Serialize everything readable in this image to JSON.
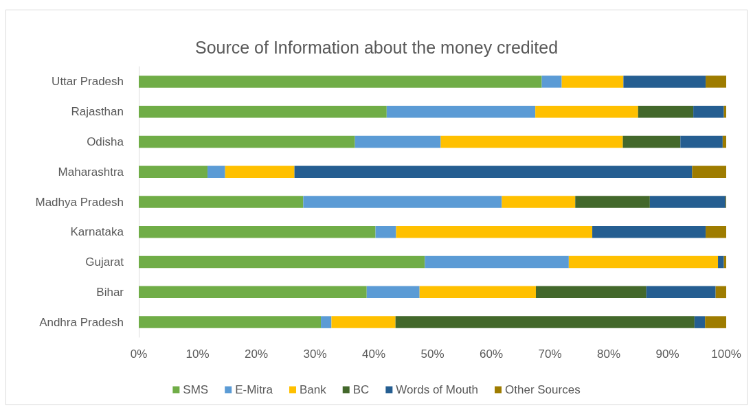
{
  "chart_data": {
    "type": "bar",
    "title": "Source of Information about the money credited",
    "orientation": "horizontal",
    "stacked": true,
    "grid": false,
    "legend": "bottom",
    "categories": [
      "Uttar Pradesh",
      "Rajasthan",
      "Odisha",
      "Maharashtra",
      "Madhya Pradesh",
      "Karnataka",
      "Gujarat",
      "Bihar",
      "Andhra Pradesh"
    ],
    "xlim": [
      0,
      100
    ],
    "xticks": [
      {
        "value": 0,
        "label": "0%"
      },
      {
        "value": 10,
        "label": "10%"
      },
      {
        "value": 20,
        "label": "20%"
      },
      {
        "value": 30,
        "label": "30%"
      },
      {
        "value": 40,
        "label": "40%"
      },
      {
        "value": 50,
        "label": "50%"
      },
      {
        "value": 60,
        "label": "60%"
      },
      {
        "value": 70,
        "label": "70%"
      },
      {
        "value": 80,
        "label": "80%"
      },
      {
        "value": 90,
        "label": "90%"
      },
      {
        "value": 100,
        "label": "100%"
      }
    ],
    "series": [
      {
        "name": "SMS",
        "color": "#70ad47",
        "values": [
          68.6,
          42.2,
          36.8,
          11.7,
          28.0,
          40.3,
          48.7,
          38.8,
          31.0
        ]
      },
      {
        "name": "E-Mitra",
        "color": "#5b9bd5",
        "values": [
          3.4,
          25.3,
          14.6,
          3.0,
          33.8,
          3.5,
          24.5,
          9.0,
          1.8
        ]
      },
      {
        "name": "Bank",
        "color": "#ffc000",
        "values": [
          10.5,
          17.5,
          31.0,
          11.8,
          12.5,
          33.4,
          25.4,
          19.8,
          10.9
        ]
      },
      {
        "name": "BC",
        "color": "#43682b",
        "values": [
          0,
          9.4,
          9.8,
          0,
          12.7,
          0,
          0,
          18.8,
          50.9
        ]
      },
      {
        "name": "Words of Mouth",
        "color": "#255e91",
        "values": [
          14.0,
          5.2,
          7.2,
          67.7,
          12.9,
          19.3,
          1.0,
          11.8,
          1.8
        ]
      },
      {
        "name": "Other Sources",
        "color": "#9e7c00",
        "values": [
          3.5,
          0.4,
          0.6,
          5.8,
          0.1,
          3.5,
          0.4,
          1.8,
          3.6
        ]
      }
    ]
  }
}
